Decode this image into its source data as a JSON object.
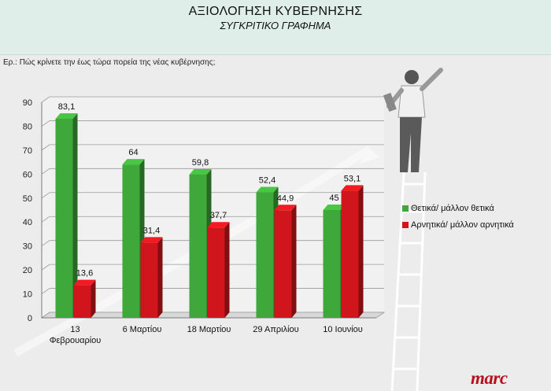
{
  "header": {
    "title": "ΑΞΙΟΛΟΓΗΣΗ ΚΥΒΕΡΝΗΣΗΣ",
    "subtitle": "ΣΥΓΚΡΙΤΙΚΟ ΓΡΑΦΗΜΑ"
  },
  "question": "Ερ.: Πώς κρίνετε την έως τώρα πορεία  της νέας κυβέρνησης;",
  "brand": "marc",
  "colors": {
    "positive": "#3ea83a",
    "negative": "#d0161c",
    "header_bg": "#dfeee9"
  },
  "chart_data": {
    "type": "bar",
    "categories": [
      "13\nΦεβρουαρίου",
      "6 Μαρτίου",
      "18 Μαρτίου",
      "29 Απριλίου",
      "10 Ιουνίου"
    ],
    "series": [
      {
        "name": "Θετικά/ μάλλον θετικά",
        "values": [
          83.1,
          64,
          59.8,
          52.4,
          45
        ],
        "color": "#3ea83a"
      },
      {
        "name": "Αρνητικά/ μάλλον αρνητικά",
        "values": [
          13.6,
          31.4,
          37.7,
          44.9,
          53.1
        ],
        "color": "#d0161c"
      }
    ],
    "data_labels": [
      [
        "83,1",
        "64",
        "59,8",
        "52,4",
        "45"
      ],
      [
        "13,6",
        "31,4",
        "37,7",
        "44,9",
        "53,1"
      ]
    ],
    "ylim": [
      0,
      90
    ],
    "yticks": [
      0,
      10,
      20,
      30,
      40,
      50,
      60,
      70,
      80,
      90
    ],
    "grid": true,
    "legend_position": "right",
    "bar_style": "3d"
  }
}
